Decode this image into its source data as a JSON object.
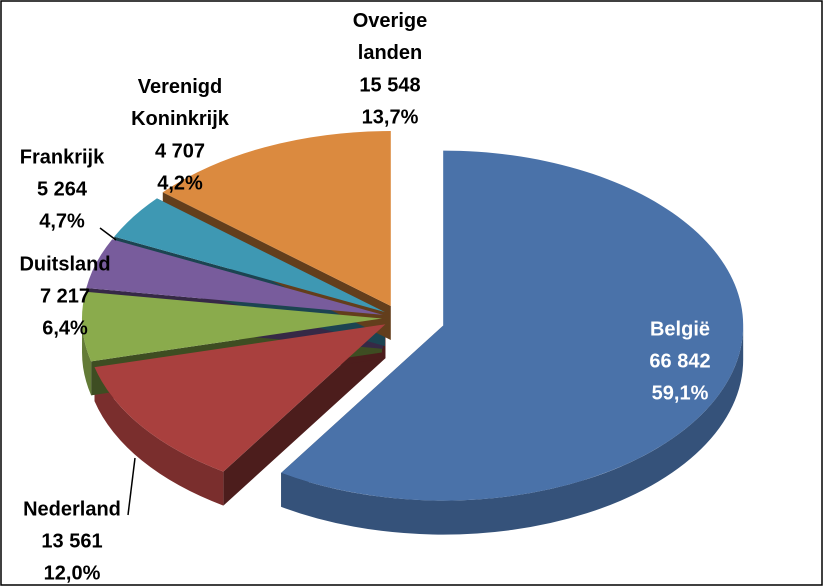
{
  "chart_data": {
    "type": "pie",
    "categories": [
      "België",
      "Nederland",
      "Duitsland",
      "Frankrijk",
      "Verenigd Koninkrijk",
      "Overige landen"
    ],
    "values": [
      66842,
      13561,
      7217,
      5264,
      4707,
      15548
    ],
    "value_labels": [
      "66 842",
      "13 561",
      "7 217",
      "5 264",
      "4 707",
      "15 548"
    ],
    "percent_values": [
      59.1,
      12.0,
      6.4,
      4.7,
      4.2,
      13.7
    ],
    "percent_labels": [
      "59,1%",
      "12,0%",
      "6,4%",
      "4,7%",
      "4,2%",
      "13,7%"
    ],
    "colors": [
      "#4a72a9",
      "#a9403e",
      "#8aab4c",
      "#785c9c",
      "#3e98b3",
      "#db8a3f"
    ]
  }
}
